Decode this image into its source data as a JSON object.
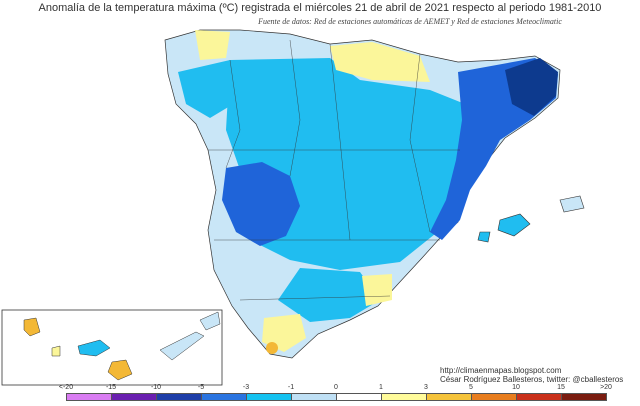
{
  "title": "Anomalía de la temperatura máxima (ºC) registrada el miércoles 21 de abril de 2021 respecto al periodo 1981-2010",
  "source": "Fuente de datos: Red de estaciones automáticas de AEMET y Red de estaciones Meteoclimatic",
  "credits": {
    "url": "http://climaenmapas.blogspot.com",
    "author": "César Rodríguez Ballesteros, twitter: @cballesteros"
  },
  "legend": {
    "labels": [
      "<-20",
      "-15",
      "-10",
      "-5",
      "-3",
      "-1",
      "0",
      "1",
      "3",
      "5",
      "10",
      "15",
      ">20"
    ],
    "colors": [
      "#d97cf2",
      "#a04ed6",
      "#6a1fb0",
      "#1e3ea8",
      "#2a74e0",
      "#14c2f0",
      "#bfe0f5",
      "#ffffff",
      "#fffb9a",
      "#f5c33b",
      "#e87d1e",
      "#c9301b",
      "#7a1c10"
    ]
  },
  "colors": {
    "anomaly_minus_5": "#0d3a8e",
    "anomaly_minus_3": "#1f64d9",
    "anomaly_minus_1": "#20bdf0",
    "anomaly_0": "#c9e6f7",
    "anomaly_plus_1": "#fbf69a",
    "anomaly_plus_3": "#f3b836",
    "sea": "#ffffff"
  }
}
